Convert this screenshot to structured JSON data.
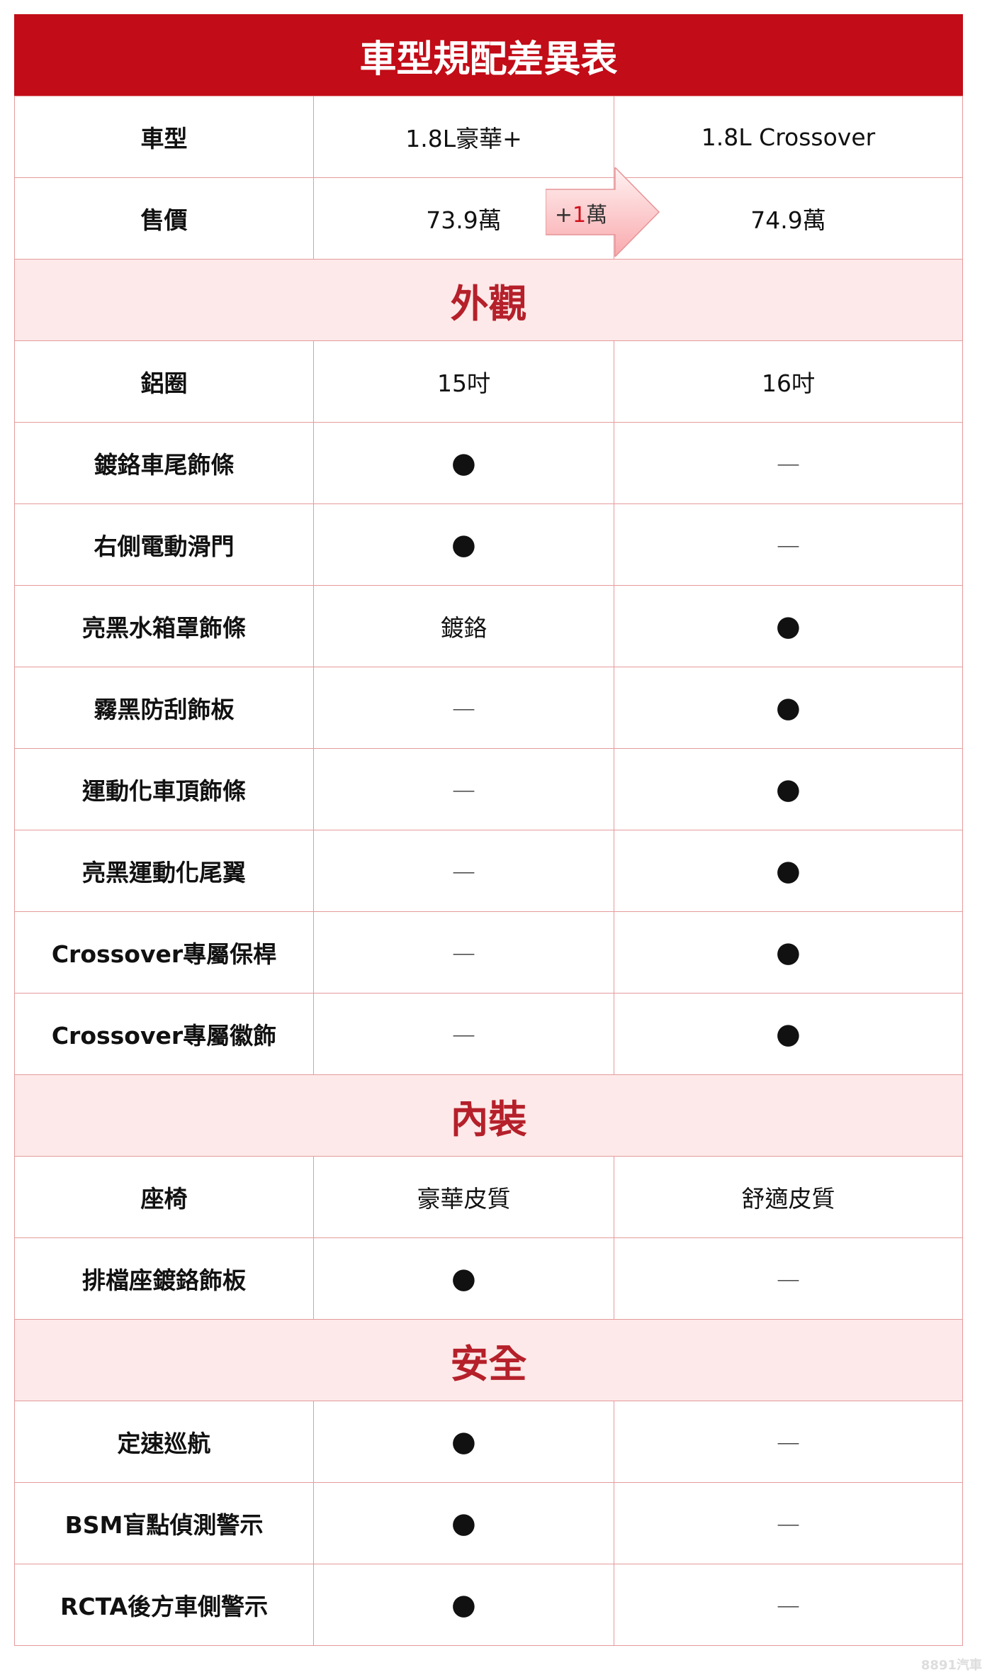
{
  "table": {
    "title": "車型規配差異表",
    "rows": [
      [
        "車型",
        "1.8L豪華+",
        "1.8L Crossover"
      ],
      [
        "售價",
        "73.9萬",
        "74.9萬"
      ],
      [
        "外觀"
      ],
      [
        "鋁圈",
        "15吋",
        "16吋"
      ],
      [
        "鍍鉻車尾飾條",
        "●",
        "—"
      ],
      [
        "右側電動滑門",
        "●",
        "—"
      ],
      [
        "亮黑水箱罩飾條",
        "鍍鉻",
        "●"
      ],
      [
        "霧黑防刮飾板",
        "—",
        "●"
      ],
      [
        "運動化車頂飾條",
        "—",
        "●"
      ],
      [
        "亮黑運動化尾翼",
        "—",
        "●"
      ],
      [
        "Crossover專屬保桿",
        "—",
        "●"
      ],
      [
        "Crossover專屬徽飾",
        "—",
        "●"
      ],
      [
        "內裝"
      ],
      [
        "座椅",
        "豪華皮質",
        "舒適皮質"
      ],
      [
        "排檔座鍍鉻飾板",
        "●",
        "—"
      ],
      [
        "安全"
      ],
      [
        "定速巡航",
        "●",
        "—"
      ],
      [
        "BSM盲點偵測警示",
        "●",
        "—"
      ],
      [
        "RCTA後方車側警示",
        "●",
        "—"
      ]
    ]
  },
  "price_note": {
    "sign": "+",
    "amount": "1",
    "unit": "萬"
  },
  "watermark": "8891汽車"
}
